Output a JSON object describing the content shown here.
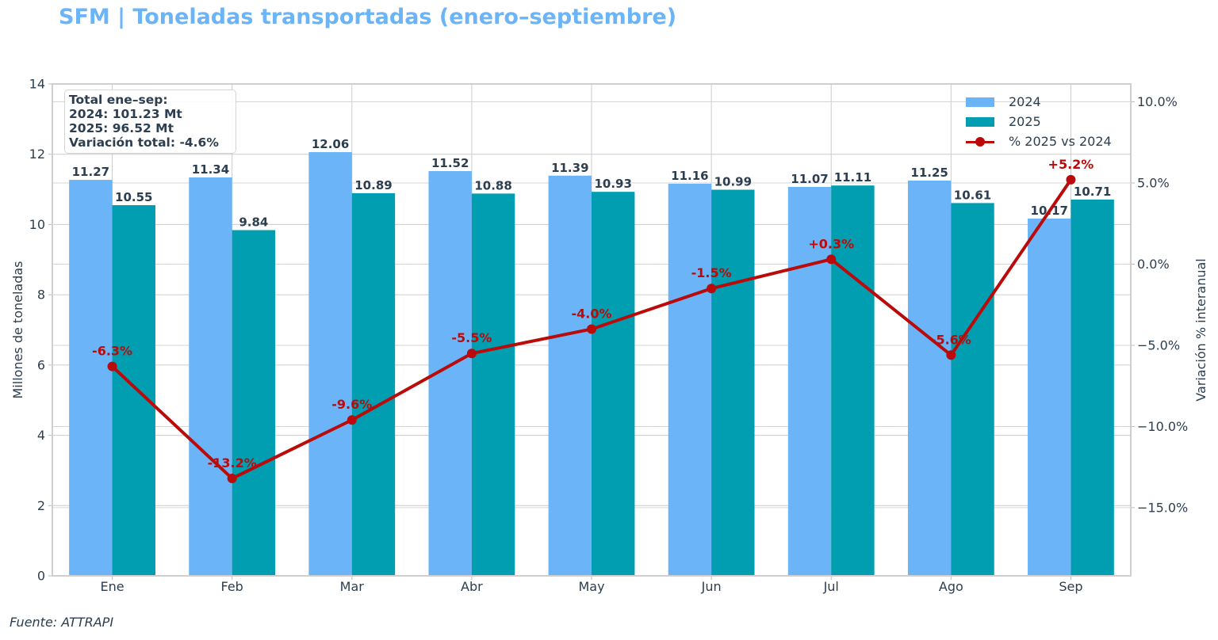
{
  "title": "SFM | Toneladas transportadas (enero–septiembre)",
  "source": "Fuente: ATTRAPI",
  "summary": {
    "heading": "Total ene–sep:",
    "line_2024": "2024: 101.23 Mt",
    "line_2025": "2025: 96.52 Mt",
    "line_total": "Variación total: -4.6%"
  },
  "legend": {
    "series_2024": "2024",
    "series_2025": "2025",
    "series_pct": "% 2025 vs 2024"
  },
  "colors": {
    "bar_2024": "#6ab4f7",
    "bar_2025": "#009eb0",
    "line": "#bb0a0a",
    "title": "#6ab4f7",
    "text": "#2c3e50",
    "grid": "#cccccc"
  },
  "chart_data": {
    "type": "bar",
    "title": "SFM | Toneladas transportadas (enero–septiembre)",
    "categories": [
      "Ene",
      "Feb",
      "Mar",
      "Abr",
      "May",
      "Jun",
      "Jul",
      "Ago",
      "Sep"
    ],
    "series": [
      {
        "name": "2024",
        "values": [
          11.27,
          11.34,
          12.06,
          11.52,
          11.39,
          11.16,
          11.07,
          11.25,
          10.17
        ],
        "labels": [
          "11.27",
          "11.34",
          "12.06",
          "11.52",
          "11.39",
          "11.16",
          "11.07",
          "11.25",
          "10.17"
        ]
      },
      {
        "name": "2025",
        "values": [
          10.55,
          9.84,
          10.89,
          10.88,
          10.93,
          10.99,
          11.11,
          10.61,
          10.71
        ],
        "labels": [
          "10.55",
          "9.84",
          "10.89",
          "10.88",
          "10.93",
          "10.99",
          "11.11",
          "10.61",
          "10.71"
        ]
      }
    ],
    "line_series": {
      "name": "% 2025 vs 2024",
      "type": "line",
      "axis": "right",
      "values": [
        -6.3,
        -13.2,
        -9.6,
        -5.5,
        -4.0,
        -1.5,
        0.3,
        -5.6,
        5.2
      ],
      "labels": [
        "-6.3%",
        "-13.2%",
        "-9.6%",
        "-5.5%",
        "-4.0%",
        "-1.5%",
        "+0.3%",
        "-5.6%",
        "+5.2%"
      ]
    },
    "ylabel": "Millones de toneladas",
    "ylim": [
      0,
      14
    ],
    "yticks": [
      "0",
      "2",
      "4",
      "6",
      "8",
      "10",
      "12",
      "14"
    ],
    "ylabel_right": "Variación % interanual",
    "ylim_right": [
      -19.2,
      11.1
    ],
    "yticks_right": [
      {
        "value": -15,
        "label": "−15.0%"
      },
      {
        "value": -10,
        "label": "−10.0%"
      },
      {
        "value": -5,
        "label": "−5.0%"
      },
      {
        "value": 0,
        "label": "0.0%"
      },
      {
        "value": 5,
        "label": "5.0%"
      },
      {
        "value": 10,
        "label": "10.0%"
      }
    ],
    "grid": true,
    "legend_position": "top-right"
  }
}
